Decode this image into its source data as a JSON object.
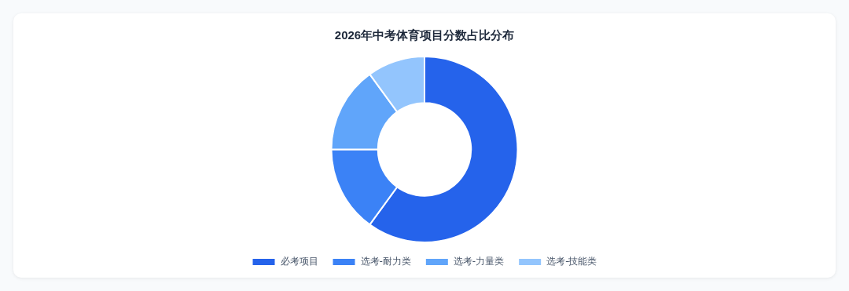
{
  "chart_data": {
    "type": "donut",
    "title": "2026年中考体育项目分数占比分布",
    "categories": [
      "必考项目",
      "选考-耐力类",
      "选考-力量类",
      "选考-技能类"
    ],
    "values": [
      60,
      15,
      15,
      10
    ],
    "colors": [
      "#2563eb",
      "#3b82f6",
      "#60a5fa",
      "#93c5fd"
    ],
    "legend": "bottom"
  }
}
